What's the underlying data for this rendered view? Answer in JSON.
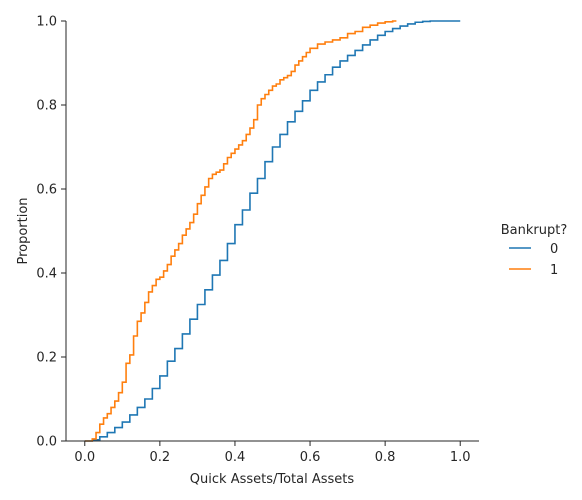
{
  "chart_data": {
    "type": "line",
    "title": "",
    "xlabel": "Quick Assets/Total Assets",
    "ylabel": "Proportion",
    "xlim": [
      -0.05,
      1.05
    ],
    "ylim": [
      0,
      1
    ],
    "xticks": [
      0.0,
      0.2,
      0.4,
      0.6,
      0.8,
      1.0
    ],
    "xtick_labels": [
      "0.0",
      "0.2",
      "0.4",
      "0.6",
      "0.8",
      "1.0"
    ],
    "yticks": [
      0.0,
      0.2,
      0.4,
      0.6,
      0.8,
      1.0
    ],
    "ytick_labels": [
      "0.0",
      "0.2",
      "0.4",
      "0.6",
      "0.8",
      "1.0"
    ],
    "grid": false,
    "legend": {
      "title": "Bankrupt?",
      "placement": "right"
    },
    "series": [
      {
        "name": "0",
        "color": "#1f77b4",
        "x": [
          0.0,
          0.02,
          0.04,
          0.06,
          0.08,
          0.1,
          0.12,
          0.14,
          0.16,
          0.18,
          0.2,
          0.22,
          0.24,
          0.26,
          0.28,
          0.3,
          0.32,
          0.34,
          0.36,
          0.38,
          0.4,
          0.42,
          0.44,
          0.46,
          0.48,
          0.5,
          0.52,
          0.54,
          0.56,
          0.58,
          0.6,
          0.62,
          0.64,
          0.66,
          0.68,
          0.7,
          0.72,
          0.74,
          0.76,
          0.78,
          0.8,
          0.82,
          0.84,
          0.86,
          0.88,
          0.9,
          0.92,
          0.95,
          1.0
        ],
        "y": [
          0.0,
          0.003,
          0.01,
          0.02,
          0.032,
          0.045,
          0.062,
          0.08,
          0.1,
          0.125,
          0.155,
          0.19,
          0.22,
          0.255,
          0.29,
          0.325,
          0.36,
          0.395,
          0.43,
          0.47,
          0.515,
          0.55,
          0.59,
          0.625,
          0.665,
          0.7,
          0.73,
          0.76,
          0.785,
          0.81,
          0.835,
          0.855,
          0.872,
          0.89,
          0.905,
          0.918,
          0.93,
          0.943,
          0.955,
          0.966,
          0.975,
          0.982,
          0.988,
          0.993,
          0.997,
          0.999,
          1.0,
          1.0,
          1.0
        ]
      },
      {
        "name": "1",
        "color": "#ff7f0e",
        "x": [
          0.0,
          0.01,
          0.02,
          0.03,
          0.04,
          0.05,
          0.06,
          0.07,
          0.08,
          0.09,
          0.1,
          0.11,
          0.12,
          0.13,
          0.14,
          0.15,
          0.16,
          0.17,
          0.18,
          0.19,
          0.2,
          0.21,
          0.22,
          0.23,
          0.24,
          0.25,
          0.26,
          0.27,
          0.28,
          0.29,
          0.3,
          0.31,
          0.32,
          0.33,
          0.34,
          0.35,
          0.36,
          0.37,
          0.38,
          0.39,
          0.4,
          0.41,
          0.42,
          0.43,
          0.44,
          0.45,
          0.46,
          0.47,
          0.48,
          0.49,
          0.5,
          0.51,
          0.52,
          0.53,
          0.54,
          0.55,
          0.56,
          0.57,
          0.58,
          0.59,
          0.6,
          0.62,
          0.64,
          0.66,
          0.68,
          0.7,
          0.72,
          0.74,
          0.76,
          0.78,
          0.8,
          0.82,
          0.83
        ],
        "y": [
          0.0,
          0.0,
          0.005,
          0.02,
          0.04,
          0.055,
          0.065,
          0.08,
          0.095,
          0.115,
          0.14,
          0.185,
          0.205,
          0.25,
          0.285,
          0.305,
          0.33,
          0.355,
          0.37,
          0.385,
          0.39,
          0.405,
          0.42,
          0.44,
          0.455,
          0.47,
          0.49,
          0.505,
          0.52,
          0.54,
          0.565,
          0.585,
          0.605,
          0.625,
          0.635,
          0.64,
          0.645,
          0.66,
          0.675,
          0.685,
          0.695,
          0.705,
          0.715,
          0.73,
          0.745,
          0.765,
          0.8,
          0.815,
          0.825,
          0.835,
          0.845,
          0.85,
          0.86,
          0.865,
          0.87,
          0.88,
          0.895,
          0.905,
          0.915,
          0.925,
          0.935,
          0.945,
          0.95,
          0.955,
          0.96,
          0.97,
          0.975,
          0.985,
          0.99,
          0.995,
          0.998,
          1.0,
          1.0
        ]
      }
    ]
  }
}
